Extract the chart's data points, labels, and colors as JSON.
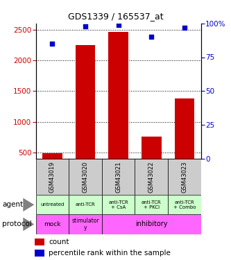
{
  "title": "GDS1339 / 165537_at",
  "samples": [
    "GSM43019",
    "GSM43020",
    "GSM43021",
    "GSM43022",
    "GSM43023"
  ],
  "counts": [
    490,
    2250,
    2460,
    760,
    1380
  ],
  "percentiles": [
    85,
    98,
    99,
    90,
    97
  ],
  "ylim_left": [
    400,
    2600
  ],
  "ylim_right": [
    0,
    100
  ],
  "left_ticks": [
    500,
    1000,
    1500,
    2000,
    2500
  ],
  "right_ticks": [
    0,
    25,
    50,
    75,
    100
  ],
  "bar_color": "#cc0000",
  "dot_color": "#0000cc",
  "agent_labels": [
    "untreated",
    "anti-TCR",
    "anti-TCR\n+ CsA",
    "anti-TCR\n+ PKCi",
    "anti-TCR\n+ Combo"
  ],
  "protocol_mock": "mock",
  "protocol_stim": "stimulator\ny",
  "protocol_inhib": "inhibitory",
  "sample_bg": "#cccccc",
  "agent_bg": "#ccffcc",
  "protocol_bg": "#ff66ff",
  "left_label_color": "#cc0000",
  "right_label_color": "#0000cc",
  "grid_color": "black"
}
